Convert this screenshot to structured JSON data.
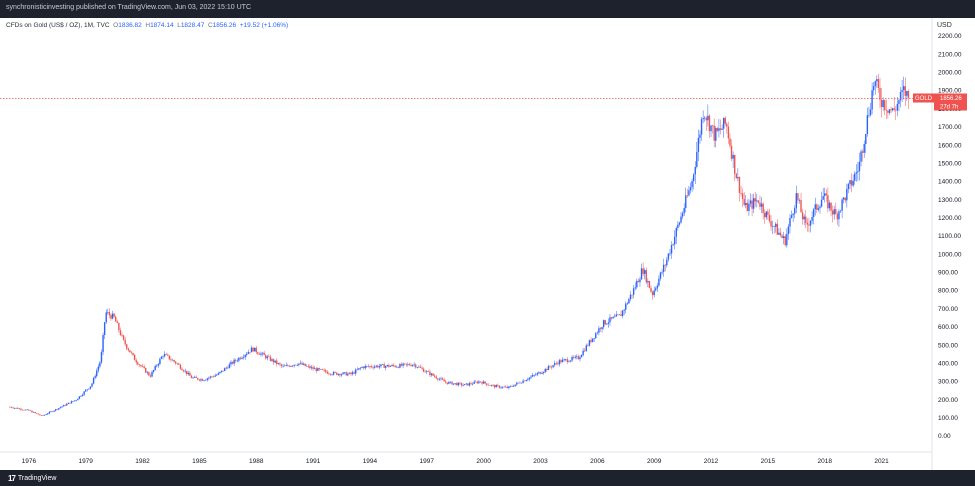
{
  "header": {
    "published": "synchronisticinvesting published on TradingView.com, Jun 03, 2022 15:10 UTC"
  },
  "symbol_info": {
    "name": "CFDs on Gold (US$ / OZ), 1M, TVC",
    "open_label": "O",
    "open": "1836.82",
    "high_label": "H",
    "high": "1874.14",
    "low_label": "L",
    "low": "1828.47",
    "close_label": "C",
    "close": "1856.26",
    "change": "+19.52 (+1.06%)"
  },
  "currency": "USD",
  "price_tag": {
    "symbol": "GOLD",
    "price": "1856.26",
    "countdown": "27d 7h"
  },
  "footer": {
    "logo_mark": "17",
    "brand": "TradingView"
  },
  "colors": {
    "up": "#2962ff",
    "down": "#ef5350",
    "last_price_line": "#ef5350",
    "background": "#ffffff",
    "frame": "#1e222d"
  },
  "chart_data": {
    "type": "candlestick",
    "title": "CFDs on Gold (US$ / OZ), 1M, TVC",
    "ylabel": "USD",
    "x_ticks": [
      "1976",
      "1979",
      "1982",
      "1985",
      "1988",
      "1991",
      "1994",
      "1997",
      "2000",
      "2003",
      "2006",
      "2009",
      "2012",
      "2015",
      "2018",
      "2021"
    ],
    "y_ticks": [
      "0.00",
      "100.00",
      "200.00",
      "300.00",
      "400.00",
      "500.00",
      "600.00",
      "700.00",
      "800.00",
      "900.00",
      "1000.00",
      "1100.00",
      "1200.00",
      "1300.00",
      "1400.00",
      "1500.00",
      "1600.00",
      "1700.00",
      "1800.00",
      "1900.00",
      "2000.00",
      "2100.00",
      "2200.00"
    ],
    "ylim": [
      0,
      2200
    ],
    "xlim": [
      1974.9,
      2022.5
    ],
    "last_price": 1856.26,
    "series": [
      {
        "values": [
          [
            1975.0,
            160
          ],
          [
            1976.0,
            140
          ],
          [
            1976.7,
            110
          ],
          [
            1977.5,
            150
          ],
          [
            1978.5,
            200
          ],
          [
            1979.3,
            280
          ],
          [
            1979.8,
            420
          ],
          [
            1980.05,
            680
          ],
          [
            1980.5,
            650
          ],
          [
            1981.0,
            520
          ],
          [
            1981.6,
            420
          ],
          [
            1982.4,
            330
          ],
          [
            1983.1,
            450
          ],
          [
            1983.8,
            400
          ],
          [
            1984.6,
            320
          ],
          [
            1985.2,
            310
          ],
          [
            1986.0,
            340
          ],
          [
            1986.7,
            400
          ],
          [
            1987.8,
            480
          ],
          [
            1988.6,
            430
          ],
          [
            1989.4,
            380
          ],
          [
            1990.2,
            400
          ],
          [
            1991.0,
            370
          ],
          [
            1992.0,
            345
          ],
          [
            1993.0,
            340
          ],
          [
            1993.6,
            380
          ],
          [
            1994.5,
            385
          ],
          [
            1995.5,
            385
          ],
          [
            1996.3,
            395
          ],
          [
            1997.2,
            340
          ],
          [
            1998.0,
            295
          ],
          [
            1999.0,
            280
          ],
          [
            1999.8,
            300
          ],
          [
            2000.5,
            275
          ],
          [
            2001.3,
            265
          ],
          [
            2002.2,
            310
          ],
          [
            2003.0,
            350
          ],
          [
            2004.0,
            410
          ],
          [
            2005.0,
            430
          ],
          [
            2006.3,
            620
          ],
          [
            2007.2,
            660
          ],
          [
            2007.9,
            800
          ],
          [
            2008.4,
            920
          ],
          [
            2008.9,
            780
          ],
          [
            2009.6,
            950
          ],
          [
            2010.4,
            1200
          ],
          [
            2011.0,
            1400
          ],
          [
            2011.6,
            1800
          ],
          [
            2012.2,
            1650
          ],
          [
            2012.8,
            1720
          ],
          [
            2013.3,
            1450
          ],
          [
            2013.8,
            1250
          ],
          [
            2014.5,
            1300
          ],
          [
            2015.0,
            1200
          ],
          [
            2015.9,
            1070
          ],
          [
            2016.5,
            1320
          ],
          [
            2017.0,
            1150
          ],
          [
            2017.9,
            1320
          ],
          [
            2018.6,
            1210
          ],
          [
            2019.0,
            1300
          ],
          [
            2019.8,
            1480
          ],
          [
            2020.6,
            1950
          ],
          [
            2021.0,
            1850
          ],
          [
            2021.6,
            1780
          ],
          [
            2022.2,
            1900
          ],
          [
            2022.4,
            1856
          ]
        ]
      }
    ]
  }
}
